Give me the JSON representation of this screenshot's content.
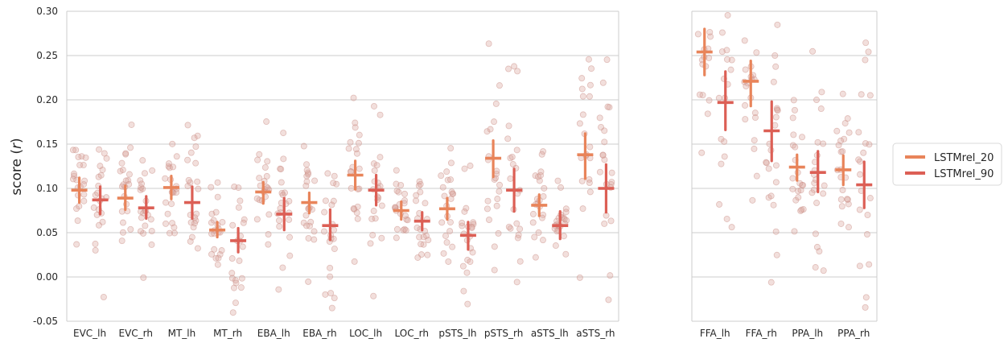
{
  "chart_data": {
    "type": "scatter",
    "ylabel": "score (r)",
    "ylim": [
      -0.05,
      0.3
    ],
    "yticks": [
      "-0.05",
      "0.00",
      "0.05",
      "0.10",
      "0.15",
      "0.20",
      "0.25",
      "0.30"
    ],
    "grid": "horizontal",
    "legend_position": "right",
    "colors": {
      "LSTMrel_20": "#e8845a",
      "LSTMrel_90": "#dc5f55",
      "points": "#d9a39b"
    },
    "series": [
      {
        "name": "LSTMrel_20",
        "style": "mean with error bar"
      },
      {
        "name": "LSTMrel_90",
        "style": "mean with error bar"
      }
    ],
    "panels": [
      {
        "categories": [
          "EVC_lh",
          "EVC_rh",
          "MT_lh",
          "MT_rh",
          "EBA_lh",
          "EBA_rh",
          "LOC_lh",
          "LOC_rh",
          "pSTS_lh",
          "pSTS_rh",
          "aSTS_lh",
          "aSTS_rh"
        ],
        "LSTMrel_20": {
          "mean": [
            0.098,
            0.089,
            0.101,
            0.053,
            0.096,
            0.084,
            0.115,
            0.075,
            0.077,
            0.134,
            0.081,
            0.138
          ],
          "lower": [
            0.084,
            0.076,
            0.088,
            0.045,
            0.083,
            0.072,
            0.099,
            0.065,
            0.065,
            0.113,
            0.069,
            0.111
          ],
          "upper": [
            0.112,
            0.103,
            0.114,
            0.062,
            0.107,
            0.095,
            0.131,
            0.085,
            0.089,
            0.154,
            0.093,
            0.162
          ]
        },
        "LSTMrel_90": {
          "mean": [
            0.087,
            0.078,
            0.084,
            0.041,
            0.071,
            0.058,
            0.098,
            0.063,
            0.047,
            0.098,
            0.058,
            0.1
          ],
          "lower": [
            0.071,
            0.066,
            0.066,
            0.028,
            0.053,
            0.042,
            0.081,
            0.053,
            0.031,
            0.074,
            0.043,
            0.073
          ],
          "upper": [
            0.102,
            0.091,
            0.102,
            0.055,
            0.089,
            0.076,
            0.115,
            0.073,
            0.062,
            0.122,
            0.074,
            0.127
          ]
        }
      },
      {
        "categories": [
          "FFA_lh",
          "FFA_rh",
          "PPA_lh",
          "PPA_rh"
        ],
        "LSTMrel_20": {
          "mean": [
            0.254,
            0.221,
            0.124,
            0.121
          ],
          "lower": [
            0.228,
            0.193,
            0.109,
            0.104
          ],
          "upper": [
            0.28,
            0.244,
            0.138,
            0.137
          ]
        },
        "LSTMrel_90": {
          "mean": [
            0.197,
            0.165,
            0.118,
            0.104
          ],
          "lower": [
            0.166,
            0.131,
            0.096,
            0.078
          ],
          "upper": [
            0.232,
            0.198,
            0.142,
            0.13
          ]
        }
      }
    ]
  },
  "legend": {
    "items": [
      "LSTMrel_20",
      "LSTMrel_90"
    ]
  }
}
